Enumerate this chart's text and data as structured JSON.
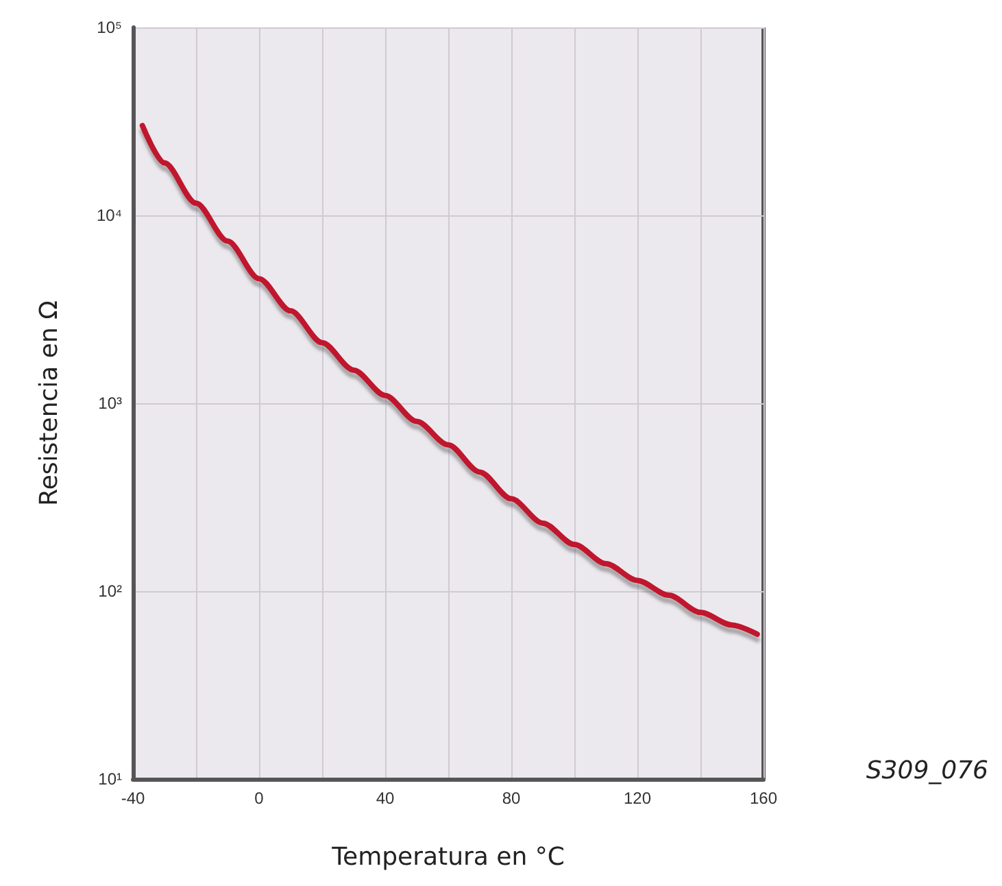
{
  "chart_data": {
    "type": "line",
    "xlabel": "Temperatura en °C",
    "ylabel": "Resistencia en Ω",
    "annotations": [
      "S309_076"
    ],
    "x": [
      -37,
      -30,
      -20,
      -10,
      0,
      10,
      20,
      30,
      40,
      50,
      60,
      70,
      80,
      90,
      100,
      110,
      120,
      130,
      140,
      150,
      158
    ],
    "series": [
      {
        "color": "#c0152f",
        "values": [
          30000,
          19000,
          11600,
          7300,
          4600,
          3100,
          2100,
          1500,
          1100,
          800,
          600,
          430,
          310,
          230,
          177,
          140,
          114,
          95,
          77,
          66,
          59
        ]
      }
    ],
    "xlim": [
      -40,
      160
    ],
    "xticks": [
      -40,
      {
        "value": -20,
        "label": null
      },
      0,
      {
        "value": 20,
        "label": null
      },
      40,
      {
        "value": 60,
        "label": null
      },
      80,
      {
        "value": 100,
        "label": null
      },
      120,
      {
        "value": 140,
        "label": null
      },
      160
    ],
    "ylim": [
      10,
      100000
    ],
    "yticks": [
      {
        "value": 10,
        "label": "10¹"
      },
      {
        "value": 100,
        "label": "10²"
      },
      {
        "value": 1000,
        "label": "10³"
      },
      {
        "value": 10000,
        "label": "10⁴"
      },
      {
        "value": 100000,
        "label": "10⁵"
      }
    ],
    "log": "y",
    "grid": true,
    "marker": "none",
    "line_style": "solid"
  }
}
